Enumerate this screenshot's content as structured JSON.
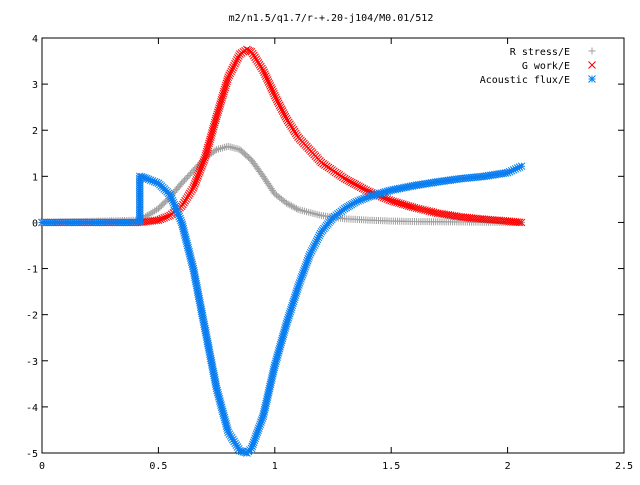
{
  "chart_data": {
    "type": "scatter",
    "title": "m2/n1.5/q1.7/r-+.20-j104/M0.01/512",
    "xlabel": "",
    "ylabel": "",
    "xlim": [
      0,
      2.5
    ],
    "ylim": [
      -5,
      4
    ],
    "x_ticks": [
      "0",
      "0.5",
      "1",
      "1.5",
      "2",
      "2.5"
    ],
    "y_ticks": [
      "4",
      "3",
      "2",
      "1",
      "0",
      "-1",
      "-2",
      "-3",
      "-4",
      "-5"
    ],
    "grid": false,
    "legend_position": "top-right",
    "series": [
      {
        "name": "R stress/E",
        "color": "#a0a0a0",
        "marker": "plus",
        "x": [
          0.0,
          0.42,
          0.5,
          0.55,
          0.6,
          0.65,
          0.7,
          0.75,
          0.8,
          0.85,
          0.9,
          0.95,
          1.0,
          1.05,
          1.1,
          1.2,
          1.3,
          1.4,
          1.5,
          1.6,
          1.8,
          2.0,
          2.06
        ],
        "y": [
          0.0,
          0.05,
          0.3,
          0.55,
          0.85,
          1.12,
          1.4,
          1.58,
          1.65,
          1.58,
          1.35,
          1.0,
          0.62,
          0.42,
          0.28,
          0.15,
          0.08,
          0.05,
          0.03,
          0.02,
          0.01,
          0.0,
          0.0
        ]
      },
      {
        "name": "G work/E",
        "color": "#ff0000",
        "marker": "cross",
        "x": [
          0.0,
          0.42,
          0.5,
          0.55,
          0.6,
          0.65,
          0.7,
          0.75,
          0.8,
          0.85,
          0.88,
          0.9,
          0.95,
          1.0,
          1.05,
          1.1,
          1.2,
          1.3,
          1.4,
          1.5,
          1.6,
          1.7,
          1.8,
          1.9,
          2.0,
          2.06
        ],
        "y": [
          0.0,
          0.0,
          0.05,
          0.15,
          0.35,
          0.75,
          1.4,
          2.3,
          3.15,
          3.65,
          3.75,
          3.7,
          3.3,
          2.75,
          2.25,
          1.85,
          1.3,
          0.95,
          0.68,
          0.47,
          0.32,
          0.2,
          0.12,
          0.07,
          0.03,
          0.0
        ]
      },
      {
        "name": "Acoustic flux/E",
        "color": "#0a7ef0",
        "marker": "star",
        "x": [
          0.0,
          0.42,
          0.42,
          0.45,
          0.5,
          0.55,
          0.6,
          0.65,
          0.7,
          0.75,
          0.8,
          0.85,
          0.88,
          0.9,
          0.95,
          1.0,
          1.05,
          1.1,
          1.15,
          1.2,
          1.25,
          1.3,
          1.35,
          1.4,
          1.5,
          1.6,
          1.7,
          1.8,
          1.9,
          2.0,
          2.06
        ],
        "y": [
          0.0,
          0.0,
          1.0,
          0.95,
          0.85,
          0.6,
          0.0,
          -1.0,
          -2.3,
          -3.6,
          -4.55,
          -4.95,
          -5.0,
          -4.9,
          -4.2,
          -3.1,
          -2.2,
          -1.4,
          -0.7,
          -0.2,
          0.1,
          0.3,
          0.45,
          0.55,
          0.7,
          0.8,
          0.88,
          0.95,
          1.0,
          1.08,
          1.22
        ]
      }
    ]
  }
}
